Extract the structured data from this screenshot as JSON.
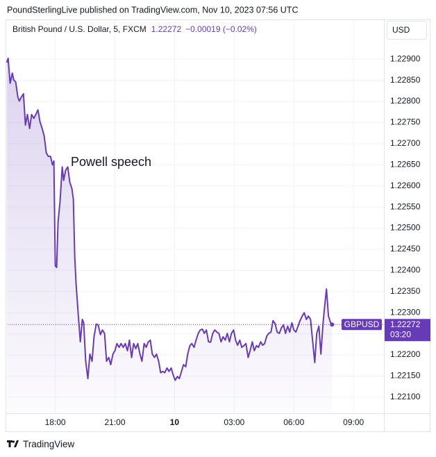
{
  "header": "PoundSterlingLive published on TradingView.com, Nov 10, 2023 07:56 UTC",
  "footer": "TradingView",
  "chart_data": {
    "type": "line",
    "legend": {
      "symbol": "British Pound / U.S. Dollar, 5, FXCM",
      "last": "1.22272",
      "change": "−0.00019 (−0.02%)"
    },
    "currency": "USD",
    "countdown": "03:20",
    "annotation": "Powell speech",
    "x": [
      15.56,
      15.63,
      15.73,
      15.84,
      15.91,
      16.01,
      16.12,
      16.19,
      16.29,
      16.4,
      16.5,
      16.6,
      16.71,
      16.81,
      16.92,
      17.02,
      17.13,
      17.23,
      17.34,
      17.44,
      17.55,
      17.65,
      17.76,
      17.86,
      17.93,
      18.0,
      18.07,
      18.14,
      18.24,
      18.35,
      18.42,
      18.52,
      18.63,
      18.73,
      18.84,
      18.91,
      18.98,
      19.05,
      19.15,
      19.26,
      19.36,
      19.43,
      19.53,
      19.64,
      19.74,
      19.85,
      19.95,
      20.06,
      20.16,
      20.27,
      20.37,
      20.48,
      20.58,
      20.69,
      20.79,
      20.9,
      21.0,
      21.1,
      21.21,
      21.31,
      21.42,
      21.52,
      21.63,
      21.73,
      21.84,
      21.94,
      22.05,
      22.15,
      22.26,
      22.36,
      22.47,
      22.57,
      22.67,
      22.78,
      22.88,
      22.99,
      23.09,
      23.2,
      23.3,
      23.41,
      23.51,
      23.62,
      23.72,
      23.83,
      23.93,
      24.03,
      24.14,
      24.24,
      24.35,
      24.45,
      24.56,
      24.66,
      24.77,
      24.87,
      24.98,
      25.08,
      25.19,
      25.29,
      25.4,
      25.5,
      25.6,
      25.71,
      25.81,
      25.92,
      26.02,
      26.13,
      26.23,
      26.34,
      26.44,
      26.55,
      26.65,
      26.76,
      26.86,
      26.97,
      27.07,
      27.17,
      27.28,
      27.38,
      27.49,
      27.59,
      27.7,
      27.8,
      27.91,
      28.01,
      28.12,
      28.22,
      28.33,
      28.43,
      28.53,
      28.64,
      28.74,
      28.85,
      28.95,
      29.06,
      29.16,
      29.27,
      29.37,
      29.48,
      29.58,
      29.69,
      29.79,
      29.9,
      30.0,
      30.1,
      30.21,
      30.31,
      30.42,
      30.52,
      30.63,
      30.73,
      30.84,
      30.94,
      31.05,
      31.15,
      31.26,
      31.36,
      31.47,
      31.57,
      31.64,
      31.74,
      31.85,
      31.92
    ],
    "series": [
      {
        "name": "GBPUSD",
        "color": "#673ab7",
        "values": [
          1.22892,
          1.22902,
          1.22843,
          1.22867,
          1.22851,
          1.22846,
          1.2281,
          1.22801,
          1.2281,
          1.22818,
          1.22744,
          1.22769,
          1.22736,
          1.22769,
          1.2276,
          1.22769,
          1.2278,
          1.22752,
          1.22736,
          1.22719,
          1.22678,
          1.2267,
          1.2267,
          1.2265,
          1.22659,
          1.22411,
          1.22407,
          1.22514,
          1.22563,
          1.22645,
          1.22613,
          1.22637,
          1.22645,
          1.22609,
          1.22593,
          1.22568,
          1.22432,
          1.22366,
          1.223,
          1.22231,
          1.22284,
          1.22276,
          1.22185,
          1.22144,
          1.22202,
          1.22185,
          1.22243,
          1.22273,
          1.22271,
          1.22248,
          1.22259,
          1.22251,
          1.22185,
          1.22194,
          1.22177,
          1.22202,
          1.2221,
          1.22227,
          1.22218,
          1.22227,
          1.22218,
          1.22227,
          1.2221,
          1.22235,
          1.22194,
          1.22227,
          1.22215,
          1.22227,
          1.22202,
          1.22185,
          1.22227,
          1.22218,
          1.2223,
          1.22235,
          1.22202,
          1.22194,
          1.22202,
          1.22185,
          1.22158,
          1.22161,
          1.22158,
          1.22169,
          1.22161,
          1.22169,
          1.22153,
          1.2214,
          1.22149,
          1.22144,
          1.22161,
          1.22177,
          1.22172,
          1.22202,
          1.22222,
          1.22227,
          1.22218,
          1.22235,
          1.22251,
          1.22259,
          1.22261,
          1.22251,
          1.22259,
          1.22231,
          1.2223,
          1.22251,
          1.22259,
          1.22254,
          1.22251,
          1.22231,
          1.22243,
          1.22235,
          1.22251,
          1.22231,
          1.22251,
          1.22259,
          1.22235,
          1.22223,
          1.22235,
          1.22218,
          1.22222,
          1.22227,
          1.22194,
          1.2221,
          1.22231,
          1.2221,
          1.22222,
          1.22218,
          1.22231,
          1.22223,
          1.22227,
          1.22245,
          1.22251,
          1.22254,
          1.22281,
          1.22274,
          1.22254,
          1.22251,
          1.22264,
          1.22271,
          1.22251,
          1.22268,
          1.22254,
          1.22276,
          1.22259,
          1.22254,
          1.22268,
          1.22281,
          1.22292,
          1.223,
          1.22284,
          1.22292,
          1.22284,
          1.22235,
          1.22182,
          1.22251,
          1.22268,
          1.22202,
          1.22276,
          1.22325,
          1.22356,
          1.22292,
          1.22276,
          1.22272
        ]
      }
    ],
    "xlim": [
      15.5,
      34.53
    ],
    "xticks": [
      {
        "value": 18,
        "label": "18:00"
      },
      {
        "value": 21,
        "label": "21:00"
      },
      {
        "value": 24,
        "label": "10"
      },
      {
        "value": 27,
        "label": "03:00"
      },
      {
        "value": 30,
        "label": "06:00"
      },
      {
        "value": 33,
        "label": "09:00"
      }
    ],
    "ylim": [
      1.22062,
      1.22994
    ],
    "yticks": [
      {
        "value": 1.221,
        "label": "1.22100"
      },
      {
        "value": 1.2215,
        "label": "1.22150"
      },
      {
        "value": 1.222,
        "label": "1.22200"
      },
      {
        "value": 1.2225,
        "label": "1.22250"
      },
      {
        "value": 1.223,
        "label": "1.22300"
      },
      {
        "value": 1.2235,
        "label": "1.22350"
      },
      {
        "value": 1.224,
        "label": "1.22400"
      },
      {
        "value": 1.2245,
        "label": "1.22450"
      },
      {
        "value": 1.225,
        "label": "1.22500"
      },
      {
        "value": 1.2255,
        "label": "1.22550"
      },
      {
        "value": 1.226,
        "label": "1.22600"
      },
      {
        "value": 1.2265,
        "label": "1.22650"
      },
      {
        "value": 1.227,
        "label": "1.22700"
      },
      {
        "value": 1.2275,
        "label": "1.22750"
      },
      {
        "value": 1.228,
        "label": "1.22800"
      },
      {
        "value": 1.2285,
        "label": "1.22850"
      },
      {
        "value": 1.229,
        "label": "1.22900"
      }
    ],
    "grid": true
  }
}
